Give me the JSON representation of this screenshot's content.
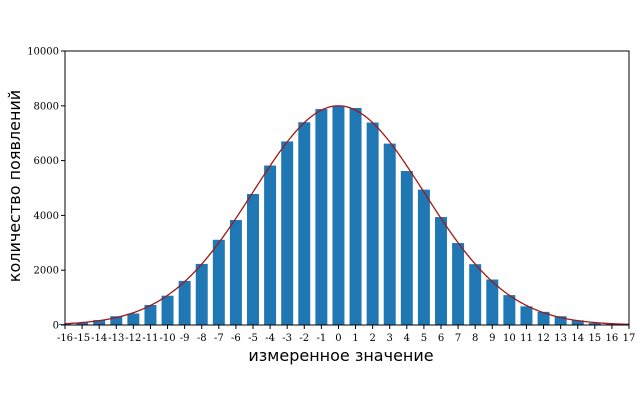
{
  "chart_data": {
    "type": "bar",
    "xlabel": "измеренное значение",
    "ylabel": "количество появлений",
    "ylim": [
      0,
      10000
    ],
    "xlim": [
      -16,
      17
    ],
    "yticks": [
      0,
      2000,
      4000,
      6000,
      8000,
      10000
    ],
    "categories": [
      -16,
      -15,
      -14,
      -13,
      -12,
      -11,
      -10,
      -9,
      -8,
      -7,
      -6,
      -5,
      -4,
      -3,
      -2,
      -1,
      0,
      1,
      2,
      3,
      4,
      5,
      6,
      7,
      8,
      9,
      10,
      11,
      12,
      13,
      14,
      15,
      16
    ],
    "xtick_labels": [
      "-16",
      "-15",
      "-14",
      "-13",
      "-12",
      "-11",
      "-10",
      "-9",
      "-8",
      "-7",
      "-6",
      "-5",
      "-4",
      "-3",
      "-2",
      "-1",
      "0",
      "1",
      "2",
      "3",
      "4",
      "5",
      "6",
      "7",
      "8",
      "9",
      "10",
      "11",
      "12",
      "13",
      "14",
      "15",
      "16",
      "17"
    ],
    "series": [
      {
        "type": "bar",
        "color": "#1f77b4",
        "values": [
          40,
          90,
          180,
          320,
          420,
          730,
          1070,
          1610,
          2230,
          3110,
          3830,
          4780,
          5820,
          6700,
          7400,
          7880,
          7990,
          7920,
          7390,
          6620,
          5620,
          4940,
          3940,
          2990,
          2220,
          1660,
          1090,
          680,
          480,
          320,
          170,
          70,
          40
        ]
      },
      {
        "type": "line",
        "color": "#a01818",
        "model": "normal",
        "peak": 8000,
        "mean": 0,
        "sigma": 5
      }
    ],
    "grid": false,
    "legend": "none"
  }
}
